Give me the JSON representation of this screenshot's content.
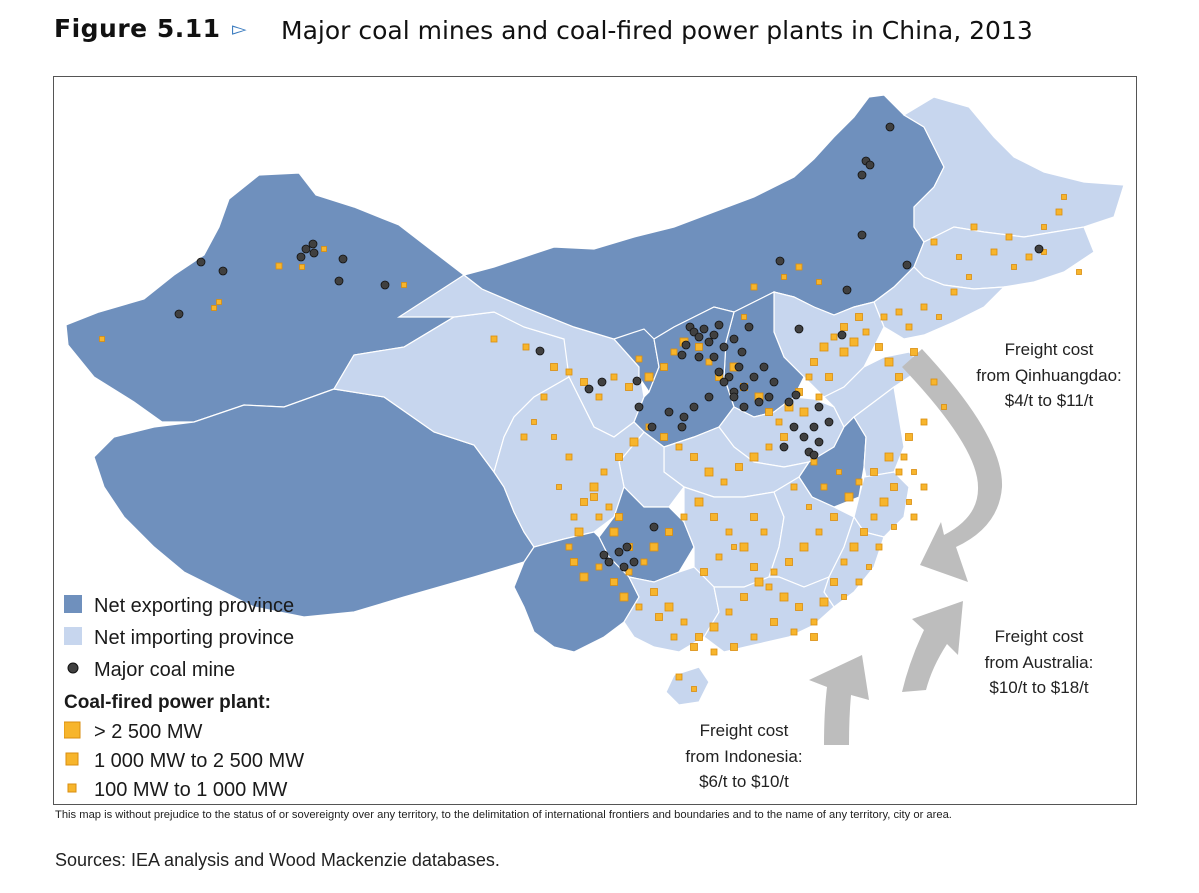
{
  "header": {
    "figure_label": "Figure 5.11",
    "figure_arrow": "▻",
    "title": "Major coal mines and coal-fired power plants in China, 2013"
  },
  "colors": {
    "net_exporting": "#6f90bd",
    "net_importing": "#c7d6ee",
    "border": "#ffffff",
    "coal_mine_fill": "#404040",
    "plant_fill": "#f7b52c",
    "plant_stroke": "#d98e10",
    "freight_arrow": "#bdbdbd"
  },
  "legend": {
    "exporting": "Net exporting province",
    "importing": "Net importing province",
    "mine": "Major coal mine",
    "plant_heading": "Coal-fired power plant:",
    "size_large": "> 2 500 MW",
    "size_medium": "1 000 MW to 2 500 MW",
    "size_small": "100 MW to 1 000 MW"
  },
  "freight": {
    "qinhuangdao": {
      "line1": "Freight cost",
      "line2": "from Qinhuangdao:",
      "line3": "$4/t to $11/t"
    },
    "australia": {
      "line1": "Freight cost",
      "line2": "from Australia:",
      "line3": "$10/t to $18/t"
    },
    "indonesia": {
      "line1": "Freight cost",
      "line2": "from Indonesia:",
      "line3": "$6/t to $10/t"
    }
  },
  "disclaimer": "This map is without prejudice to the status of or sovereignty over any territory, to the delimitation of international frontiers and boundaries and to the name of any territory, city or area.",
  "sources": "Sources: IEA analysis and Wood Mackenzie databases."
}
